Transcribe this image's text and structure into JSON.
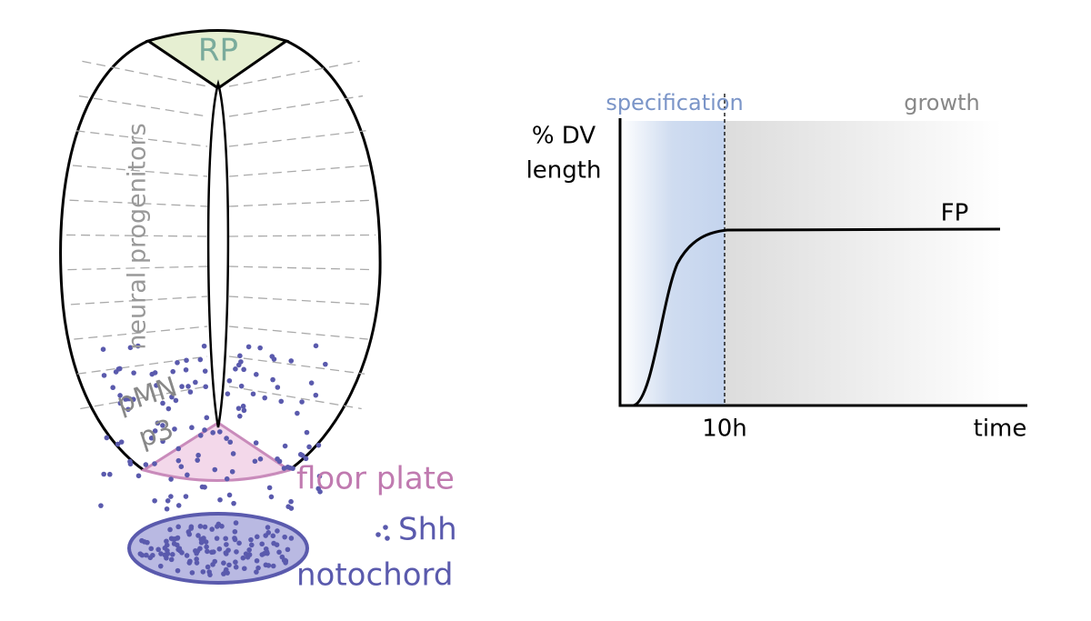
{
  "neural_tube": {
    "roof_plate": "RP",
    "neural_progenitors": "neural progenitors",
    "pMN": "pMN",
    "p3": "p3",
    "floor_plate": "floor plate",
    "shh": "Shh",
    "notochord": "notochord"
  },
  "graph": {
    "phase_specification": "specification",
    "phase_growth": "growth",
    "y_label_line1": "% DV",
    "y_label_line2": "length",
    "x_label": "time",
    "x_tick": "10h",
    "curve_label": "FP"
  }
}
